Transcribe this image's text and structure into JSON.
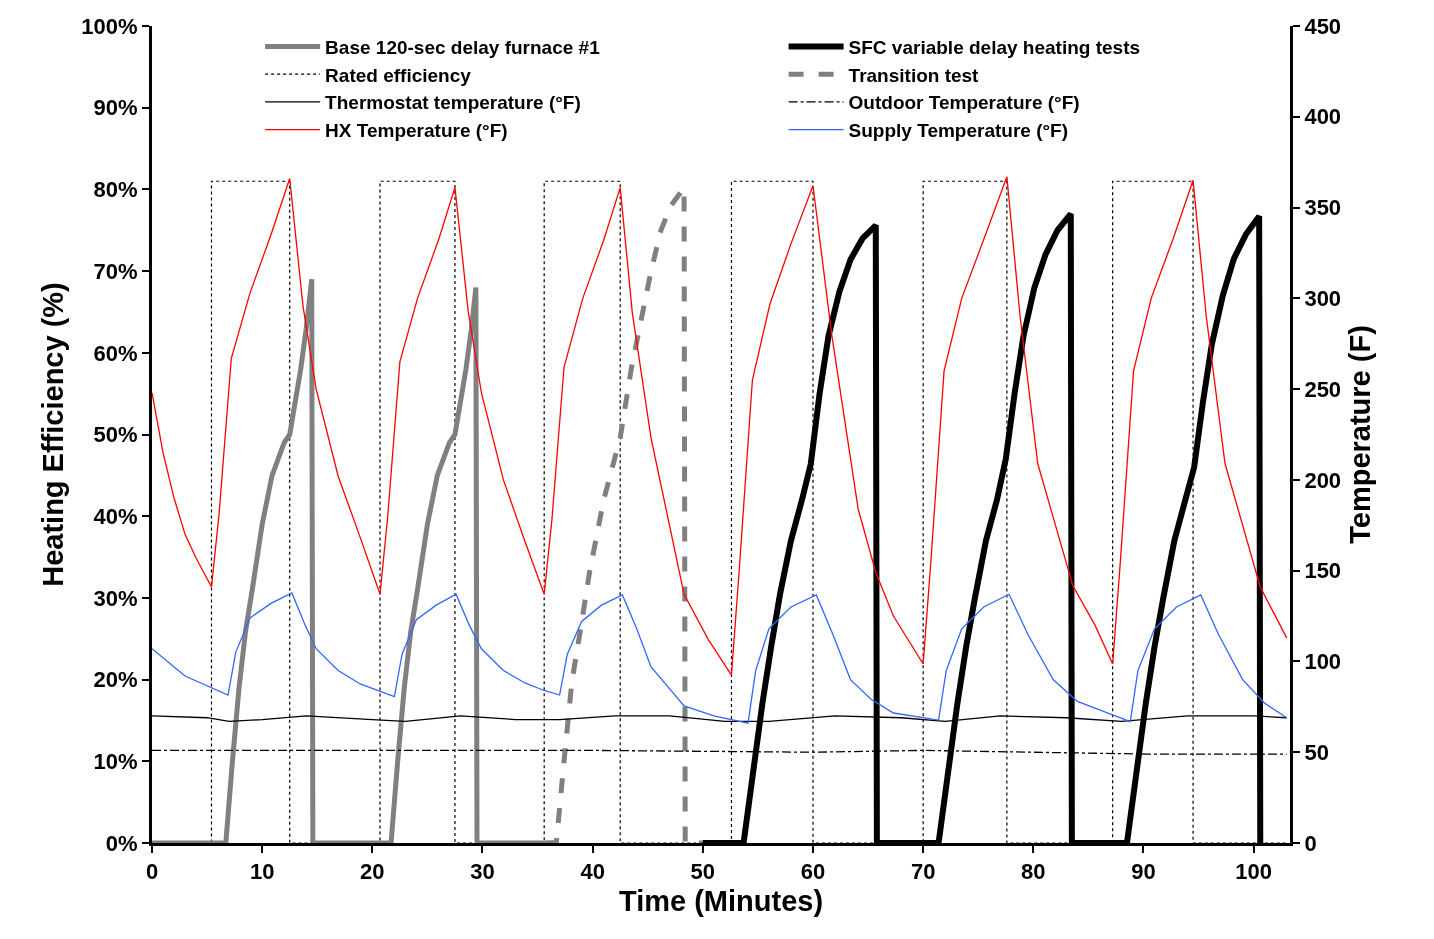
{
  "chart_data": {
    "type": "line",
    "xlabel": "Time (Minutes)",
    "ylabel": "Heating Efficiency (%)",
    "y2label": "Temperature (F)",
    "xlim": [
      0,
      103.3
    ],
    "xticks": [
      0,
      10,
      20,
      30,
      40,
      50,
      60,
      70,
      80,
      90,
      100
    ],
    "ylim": [
      0,
      100
    ],
    "yticks": [
      {
        "value": 0,
        "label": "0%"
      },
      {
        "value": 10,
        "label": "10%"
      },
      {
        "value": 20,
        "label": "20%"
      },
      {
        "value": 30,
        "label": "30%"
      },
      {
        "value": 40,
        "label": "40%"
      },
      {
        "value": 50,
        "label": "50%"
      },
      {
        "value": 60,
        "label": "60%"
      },
      {
        "value": 70,
        "label": "70%"
      },
      {
        "value": 80,
        "label": "80%"
      },
      {
        "value": 90,
        "label": "90%"
      },
      {
        "value": 100,
        "label": "100%"
      }
    ],
    "y2lim": [
      0,
      450
    ],
    "y2ticks": [
      0,
      50,
      100,
      150,
      200,
      250,
      300,
      350,
      400,
      450
    ],
    "legend": "top",
    "marker": "none",
    "series": [
      {
        "name": "Base 120-sec delay furnace #1",
        "color": "#808080",
        "line_style": "solid",
        "x": [
          0,
          6.7,
          7.3,
          7.9,
          8.5,
          9.1,
          10,
          10.9,
          12,
          12.5,
          13.5,
          14.0,
          14.5,
          14.6,
          21.7,
          22.3,
          22.9,
          23.5,
          24.1,
          25,
          25.9,
          27,
          27.5,
          28.5,
          29.0,
          29.4,
          29.5,
          36.5
        ],
        "values": [
          0,
          0,
          10,
          19,
          26,
          31,
          39,
          45,
          49,
          50,
          58,
          63,
          69,
          0,
          0,
          10,
          19,
          26,
          31,
          39,
          45,
          49,
          50,
          58,
          63,
          68,
          0,
          0
        ]
      },
      {
        "name": "SFC variable delay heating tests",
        "color": "#000000",
        "line_style": "solid",
        "x": [
          50,
          53.7,
          54.5,
          55.4,
          56.2,
          57,
          58,
          59,
          59.8,
          60.6,
          61.4,
          62.4,
          63.4,
          64.5,
          65.7,
          65.8,
          71.4,
          72.2,
          73.1,
          73.9,
          74.7,
          75.7,
          76.7,
          77.5,
          78.3,
          79.1,
          80.1,
          81.1,
          82.2,
          83.4,
          83.5,
          88.5,
          89.3,
          90.2,
          91,
          91.8,
          92.8,
          93.8,
          94.6,
          95.4,
          96.2,
          97.2,
          98.2,
          99.3,
          100.5,
          100.6
        ],
        "values": [
          0,
          0,
          8,
          17,
          24,
          30.4,
          37,
          42,
          46.4,
          55,
          62,
          67.5,
          71.4,
          74,
          75.6,
          0,
          0,
          8,
          17,
          24,
          30,
          37,
          42,
          47,
          55,
          62,
          68,
          72,
          75,
          77,
          0,
          0,
          8,
          17,
          24,
          30,
          37,
          42,
          46,
          54,
          61,
          67,
          71.5,
          74.5,
          76.7,
          0
        ]
      },
      {
        "name": "Rated efficiency",
        "color": "#000000",
        "line_style": "dotted",
        "x": [
          0,
          5.4,
          5.4,
          12.5,
          12.5,
          20.7,
          20.7,
          27.5,
          27.5,
          35.6,
          35.6,
          42.5,
          42.5,
          52.6,
          52.6,
          60,
          60,
          70,
          70,
          77.6,
          77.6,
          87.2,
          87.2,
          94.5,
          94.5,
          103
        ],
        "values": [
          0,
          0,
          81,
          81,
          0,
          0,
          81,
          81,
          0,
          0,
          81,
          81,
          0,
          0,
          81,
          81,
          0,
          0,
          81,
          81,
          0,
          0,
          81,
          81,
          0,
          0
        ]
      },
      {
        "name": "Transition test",
        "color": "#808080",
        "line_style": "dashed",
        "x": [
          35.8,
          36.7,
          37.4,
          38.1,
          39,
          39.7,
          41,
          42.5,
          43.5,
          44.4,
          45.3,
          46.2,
          47.1,
          48.3,
          48.4,
          51
        ],
        "values": [
          0,
          0,
          10,
          19.6,
          27,
          33,
          42,
          49.6,
          58,
          64,
          70,
          75,
          78,
          80.2,
          0,
          0
        ]
      },
      {
        "name": "Thermostat temperature (°F)",
        "color": "#000000",
        "line_style": "solid",
        "axis": "y2",
        "x": [
          0,
          5,
          7,
          10,
          14,
          20,
          23,
          28,
          33,
          37,
          42,
          47,
          52,
          56,
          62,
          68,
          72,
          77,
          83,
          88,
          94,
          100,
          103
        ],
        "values": [
          70,
          69,
          67,
          68,
          70,
          68,
          67,
          70,
          68,
          68,
          70,
          70,
          67,
          67,
          70,
          69,
          67,
          70,
          69,
          67,
          70,
          70,
          69
        ]
      },
      {
        "name": "Outdoor Temperature (°F)",
        "color": "#000000",
        "line_style": "dashdot",
        "axis": "y2",
        "x": [
          0,
          20,
          40,
          60,
          70,
          80,
          90,
          103
        ],
        "values": [
          51,
          51,
          51,
          50,
          51,
          50,
          49,
          49
        ]
      },
      {
        "name": "HX Temperature (°F)",
        "color": "#ff0000",
        "line_style": "solid",
        "axis": "y2",
        "x": [
          0,
          1,
          2,
          3,
          4,
          5.4,
          6.1,
          7.2,
          8.9,
          10.8,
          12.5,
          13.7,
          14.9,
          16.9,
          18.8,
          20.7,
          21.4,
          22.5,
          24.1,
          26,
          27.5,
          28.7,
          29.9,
          31.9,
          33.8,
          35.6,
          36.3,
          37.4,
          39.1,
          41,
          42.5,
          43.6,
          45.3,
          48.3,
          50.5,
          52.6,
          53.3,
          54.5,
          56.1,
          58,
          60,
          61.7,
          64.1,
          65.7,
          67.3,
          70,
          70.7,
          71.9,
          73.5,
          75.6,
          77.6,
          78.8,
          80.4,
          83.6,
          85.6,
          87.2,
          87.9,
          89.1,
          90.7,
          92.7,
          94.5,
          95.7,
          97.4,
          100.6,
          103
        ],
        "values": [
          248,
          215,
          190,
          170,
          157,
          141,
          182,
          267,
          303,
          335,
          366,
          296,
          250,
          202,
          170,
          137,
          180,
          265,
          300,
          332,
          361,
          293,
          248,
          200,
          167,
          137,
          178,
          262,
          300,
          332,
          361,
          292,
          223,
          137,
          112,
          92.5,
          150,
          255,
          297,
          330,
          362,
          280,
          184,
          149,
          125,
          98.6,
          155,
          260,
          300,
          334,
          367,
          290,
          209,
          141.5,
          120,
          98.6,
          155,
          260,
          300,
          333,
          365,
          290,
          209,
          141,
          113
        ]
      },
      {
        "name": "Supply Temperature (°F)",
        "color": "#3366ff",
        "line_style": "solid",
        "axis": "y2",
        "x": [
          0,
          3,
          6.9,
          7.6,
          8.9,
          10.8,
          12.7,
          13.9,
          14.9,
          16.9,
          18.9,
          22.0,
          22.7,
          24,
          25.8,
          27.6,
          28.8,
          29.9,
          31.9,
          33.9,
          35.6,
          37.0,
          37.7,
          39,
          40.8,
          42.7,
          44,
          45.3,
          48.3,
          51,
          54.1,
          54.8,
          56,
          58,
          60.3,
          61.8,
          63.4,
          65.3,
          67.3,
          71.4,
          72.1,
          73.5,
          75.5,
          77.8,
          79.5,
          81.8,
          84,
          88.8,
          89.5,
          91,
          93,
          95.2,
          96.8,
          99,
          101,
          103
        ],
        "values": [
          107,
          92,
          81.5,
          105,
          124,
          132,
          137.7,
          120,
          107,
          95,
          87.6,
          80.6,
          104,
          123,
          131,
          137,
          120,
          107,
          95,
          88,
          84,
          81.5,
          104,
          122,
          131,
          136.6,
          118,
          97,
          75.5,
          70,
          66,
          95,
          118,
          130,
          136.6,
          115,
          90,
          79,
          71.6,
          67.7,
          95,
          118,
          130,
          137,
          115,
          90,
          78,
          66.8,
          95,
          118,
          130,
          136.6,
          115,
          90,
          77,
          69
        ]
      }
    ]
  }
}
